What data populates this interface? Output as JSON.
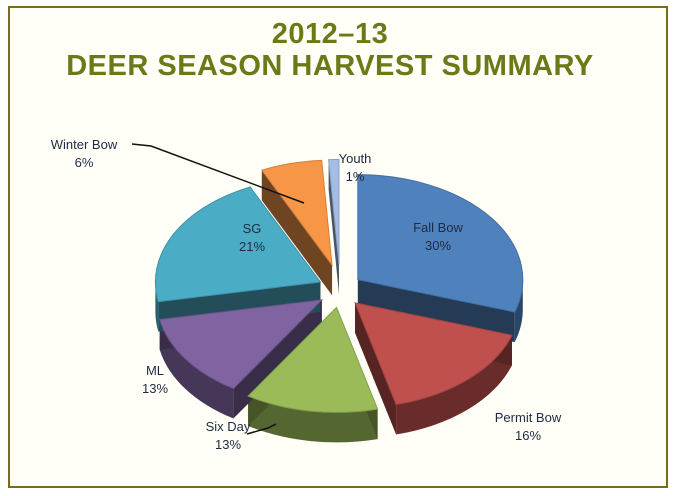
{
  "chart_data": {
    "type": "pie",
    "title_line1": "2012–13",
    "title_line2": "DEER SEASON HARVEST SUMMARY",
    "slices": [
      {
        "name": "Fall Bow",
        "pct_label": "30%",
        "value": 30,
        "color": "#4f81bd"
      },
      {
        "name": "Permit Bow",
        "pct_label": "16%",
        "value": 16,
        "color": "#c0504d"
      },
      {
        "name": "Six Day",
        "pct_label": "13%",
        "value": 13,
        "color": "#9bbb59"
      },
      {
        "name": "ML",
        "pct_label": "13%",
        "value": 13,
        "color": "#8064a2"
      },
      {
        "name": "SG",
        "pct_label": "21%",
        "value": 21,
        "color": "#4bacc6"
      },
      {
        "name": "Winter Bow",
        "pct_label": "6%",
        "value": 6,
        "color": "#f79646"
      },
      {
        "name": "Youth",
        "pct_label": "1%",
        "value": 1,
        "color": "#a4bde6"
      }
    ]
  }
}
